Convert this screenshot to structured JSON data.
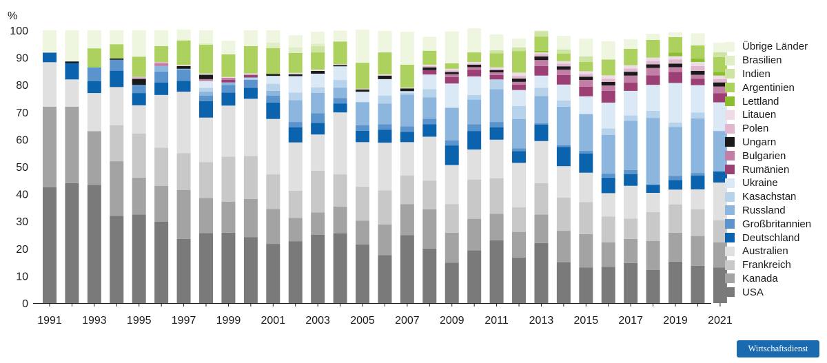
{
  "chart_data": {
    "type": "bar",
    "stacked": true,
    "ylabel": "%",
    "ylim": [
      0,
      100
    ],
    "yticks": [
      0,
      10,
      20,
      30,
      40,
      50,
      60,
      70,
      80,
      90,
      100
    ],
    "xtick_labels": [
      "1991",
      "1993",
      "1995",
      "1997",
      "1999",
      "2001",
      "2003",
      "2005",
      "2007",
      "2009",
      "2011",
      "2013",
      "2015",
      "2017",
      "2019",
      "2021"
    ],
    "categories": [
      "1991",
      "1992",
      "1993",
      "1994",
      "1995",
      "1996",
      "1997",
      "1998",
      "1999",
      "2000",
      "2001",
      "2002",
      "2003",
      "2004",
      "2005",
      "2006",
      "2007",
      "2008",
      "2009",
      "2010",
      "2011",
      "2012",
      "2013",
      "2014",
      "2015",
      "2016",
      "2017",
      "2018",
      "2019",
      "2020",
      "2021"
    ],
    "legend_position": "right",
    "series": [
      {
        "name": "USA",
        "color": "#7a7a7a",
        "values": [
          42.5,
          44,
          43.3,
          32,
          32.5,
          29.8,
          23.5,
          25.7,
          25.8,
          24.2,
          21.7,
          22.7,
          25,
          25.6,
          21.5,
          17.6,
          24.9,
          20,
          14.8,
          19.3,
          23,
          16.7,
          22,
          15,
          13,
          13.3,
          14.7,
          12.2,
          15.2,
          13.7,
          13
        ]
      },
      {
        "name": "Kanada",
        "color": "#a3a3a3",
        "values": [
          29.5,
          28,
          19.7,
          20,
          13.5,
          13.2,
          18,
          12.8,
          11.4,
          14,
          12.8,
          8.5,
          8.2,
          9.8,
          8.7,
          11.2,
          11.4,
          14.4,
          11,
          11.6,
          9.7,
          9.4,
          10.5,
          11.5,
          12.3,
          9,
          8.8,
          10.6,
          10.6,
          10.9,
          9.3
        ]
      },
      {
        "name": "Frankreich",
        "color": "#c8c8c8",
        "values": [
          0,
          0,
          0,
          13.2,
          16.2,
          14,
          13.5,
          13.2,
          16.5,
          15.7,
          12.7,
          10,
          15.3,
          11.8,
          12.5,
          12.5,
          10.5,
          10.5,
          10.5,
          14.4,
          13.1,
          9,
          11.5,
          12.2,
          11.7,
          9.4,
          7.5,
          10.6,
          10.4,
          9.8,
          8.1
        ]
      },
      {
        "name": "Australien",
        "color": "#e0e0e0",
        "values": [
          16.3,
          10,
          14,
          14,
          10.3,
          19.3,
          22.5,
          16.3,
          18.7,
          21,
          20.3,
          17.7,
          13.3,
          22.7,
          16.3,
          17.5,
          12.2,
          16.1,
          14.3,
          11,
          14.1,
          16.3,
          15.4,
          11.5,
          10.8,
          8.6,
          12,
          7,
          5.4,
          7.3,
          13.8
        ]
      },
      {
        "name": "Deutschland",
        "color": "#0b63ad",
        "values": [
          3.5,
          6,
          4.4,
          6,
          4.5,
          4.6,
          4,
          6,
          4.8,
          4,
          6,
          5.5,
          4.3,
          3.3,
          4.2,
          4.8,
          3.8,
          4.6,
          7.2,
          6.8,
          4.5,
          4.3,
          6,
          7,
          7,
          5.7,
          4.3,
          3,
          3.5,
          5,
          4.1
        ]
      },
      {
        "name": "Großbritannien",
        "color": "#5b94cc",
        "values": [
          0,
          0,
          5,
          4,
          3,
          4,
          4,
          2,
          2.8,
          3,
          2.5,
          2,
          3.5,
          2,
          2,
          2,
          2,
          2,
          1.8,
          2.5,
          2,
          1,
          0.5,
          0.8,
          1,
          1.5,
          1.5,
          0,
          1.5,
          1,
          0
        ]
      },
      {
        "name": "Russland",
        "color": "#8db6de",
        "values": [
          0,
          0,
          0,
          0,
          0,
          2,
          0.4,
          1.5,
          0.9,
          0,
          1.8,
          8,
          7.5,
          3.8,
          8.5,
          7.5,
          11.6,
          7.8,
          12,
          9,
          12,
          10.8,
          10,
          14,
          13.5,
          14.2,
          18,
          24.5,
          18,
          20,
          14.8
        ]
      },
      {
        "name": "Kasachstan",
        "color": "#b7d3ec",
        "values": [
          0,
          0,
          0,
          0,
          0,
          0,
          0,
          1.4,
          0,
          0.8,
          2.6,
          2.8,
          2,
          2.8,
          0,
          3,
          0.8,
          3,
          0,
          1.7,
          3.6,
          4.8,
          3,
          2.3,
          0,
          2.3,
          2,
          2.6,
          1.6,
          2.2,
          0
        ]
      },
      {
        "name": "Ukraine",
        "color": "#dbe9f6",
        "values": [
          0,
          0,
          0,
          0,
          0,
          0,
          0,
          2.5,
          0,
          0,
          2.9,
          6,
          5,
          5,
          3.8,
          6,
          0.5,
          5.4,
          8.9,
          6.8,
          0,
          5.8,
          4.5,
          5.8,
          6.5,
          9.5,
          9,
          9.5,
          14.5,
          10,
          10.5
        ]
      },
      {
        "name": "Rumänien",
        "color": "#9b3f74",
        "values": [
          0,
          0,
          0,
          0,
          0,
          0,
          0,
          0,
          1,
          1,
          0,
          0,
          0,
          0,
          0,
          0,
          0,
          1.6,
          2.4,
          2.4,
          1.6,
          2,
          3.5,
          3.5,
          3.5,
          4.3,
          3,
          3.5,
          4,
          2.3,
          3.3
        ]
      },
      {
        "name": "Bulgarien",
        "color": "#c27fa6",
        "values": [
          0,
          0,
          0,
          0,
          0,
          1,
          0,
          0.7,
          0.7,
          0,
          0,
          0,
          0,
          0,
          0,
          0,
          0,
          0,
          1,
          1,
          1,
          1,
          2.2,
          2,
          2.5,
          2,
          2.6,
          2.7,
          1.8,
          1.5,
          2.5
        ]
      },
      {
        "name": "Ungarn",
        "color": "#1a1a1a",
        "values": [
          0,
          0.6,
          0,
          0.5,
          2.2,
          0,
          1,
          1.6,
          0,
          0,
          0.7,
          0.7,
          1,
          0.5,
          0.8,
          1.3,
          1,
          1,
          0.8,
          0.9,
          0.8,
          1.2,
          1.3,
          1.2,
          1.2,
          1.3,
          1.4,
          1.3,
          1.3,
          1.4,
          1.5
        ]
      },
      {
        "name": "Polen",
        "color": "#dfb7cf",
        "values": [
          0,
          0,
          0,
          0,
          0.8,
          0.5,
          0,
          0,
          0,
          0,
          0,
          0,
          0,
          0,
          0,
          0,
          0,
          0.5,
          0.6,
          0.4,
          0.5,
          1,
          0.9,
          1,
          1,
          1.1,
          1.2,
          1.3,
          1.5,
          1.8,
          1.2
        ]
      },
      {
        "name": "Litauen",
        "color": "#eddbe6",
        "values": [
          0,
          0,
          0,
          0,
          0,
          0,
          0.4,
          0.5,
          0.3,
          0.5,
          0,
          0.5,
          0.5,
          0.3,
          0.3,
          0.5,
          0.3,
          0.5,
          0.6,
          0.6,
          0.5,
          1.2,
          0.6,
          0.9,
          1,
          1.3,
          1.2,
          1.2,
          1.2,
          1.5,
          1.3
        ]
      },
      {
        "name": "Lettland",
        "color": "#8abe2e",
        "values": [
          0,
          0,
          0,
          0,
          0,
          0,
          0,
          0,
          0,
          0,
          0,
          0,
          0,
          0,
          0,
          0,
          0,
          0,
          0,
          0,
          0,
          0,
          0.6,
          0,
          0,
          0,
          0,
          0,
          1.3,
          1.3,
          1.3
        ]
      },
      {
        "name": "Argentinien",
        "color": "#acd15f",
        "values": [
          0,
          0,
          7,
          5.2,
          7.3,
          5.8,
          9,
          10.5,
          8.3,
          10,
          9.5,
          7.3,
          6.3,
          8.3,
          9.5,
          8,
          8.4,
          5.1,
          2,
          3.5,
          5.2,
          7.9,
          5.2,
          2.8,
          3.4,
          5.8,
          6,
          6.5,
          5.7,
          4.8,
          5.5
        ]
      },
      {
        "name": "Indien",
        "color": "#cde4a3",
        "values": [
          0,
          0,
          0,
          0,
          0,
          0,
          0,
          0,
          0,
          0,
          0,
          0,
          2.3,
          0,
          0,
          0,
          0,
          0,
          0,
          0,
          1.1,
          1.3,
          2,
          1.5,
          2,
          0,
          0,
          0,
          0,
          0,
          1.8
        ]
      },
      {
        "name": "Brasilien",
        "color": "#e0eec6",
        "values": [
          0.2,
          0,
          0,
          0,
          0.2,
          0,
          0,
          0.5,
          0,
          0,
          2,
          2,
          0.9,
          0,
          0,
          0,
          0,
          0,
          0,
          0,
          0,
          0,
          0,
          0,
          0,
          0,
          0,
          0,
          0,
          0,
          0
        ]
      },
      {
        "name": "Übrige Länder",
        "color": "#eef6e0",
        "values": [
          8,
          11.4,
          6.6,
          5.1,
          9.5,
          5.8,
          4,
          4.8,
          5,
          5.8,
          4.5,
          4.5,
          4.4,
          4,
          12.2,
          7.9,
          12.1,
          5.1,
          11.7,
          8.8,
          5.8,
          3.3,
          0.3,
          5,
          6.5,
          6.7,
          3.5,
          2.2,
          1.8,
          4.4,
          3.5
        ]
      }
    ]
  },
  "legend_title": "",
  "badge": {
    "label": "Wirtschaftsdienst"
  }
}
